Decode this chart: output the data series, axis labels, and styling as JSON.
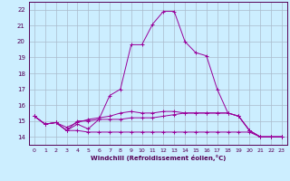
{
  "xlabel": "Windchill (Refroidissement éolien,°C)",
  "background_color": "#cceeff",
  "grid_color": "#aabbcc",
  "line_color": "#990099",
  "xlim": [
    -0.5,
    23.5
  ],
  "ylim": [
    13.5,
    22.5
  ],
  "yticks": [
    14,
    15,
    16,
    17,
    18,
    19,
    20,
    21,
    22
  ],
  "xticks": [
    0,
    1,
    2,
    3,
    4,
    5,
    6,
    7,
    8,
    9,
    10,
    11,
    12,
    13,
    14,
    15,
    16,
    17,
    18,
    19,
    20,
    21,
    22,
    23
  ],
  "series": [
    [
      15.3,
      14.8,
      14.9,
      14.4,
      14.8,
      14.5,
      15.1,
      16.6,
      17.0,
      19.8,
      19.8,
      21.1,
      21.9,
      21.9,
      20.0,
      19.3,
      19.1,
      17.0,
      15.5,
      15.3,
      14.4,
      14.0,
      14.0,
      14.0
    ],
    [
      15.3,
      14.8,
      14.9,
      14.4,
      15.0,
      15.0,
      15.1,
      15.1,
      15.1,
      15.2,
      15.2,
      15.2,
      15.3,
      15.4,
      15.5,
      15.5,
      15.5,
      15.5,
      15.5,
      15.3,
      14.4,
      14.0,
      14.0,
      14.0
    ],
    [
      15.3,
      14.8,
      14.9,
      14.4,
      14.4,
      14.3,
      14.3,
      14.3,
      14.3,
      14.3,
      14.3,
      14.3,
      14.3,
      14.3,
      14.3,
      14.3,
      14.3,
      14.3,
      14.3,
      14.3,
      14.3,
      14.0,
      14.0,
      14.0
    ],
    [
      15.3,
      14.8,
      14.9,
      14.6,
      14.9,
      15.1,
      15.2,
      15.3,
      15.5,
      15.6,
      15.5,
      15.5,
      15.6,
      15.6,
      15.5,
      15.5,
      15.5,
      15.5,
      15.5,
      15.3,
      14.4,
      14.0,
      14.0,
      14.0
    ]
  ]
}
